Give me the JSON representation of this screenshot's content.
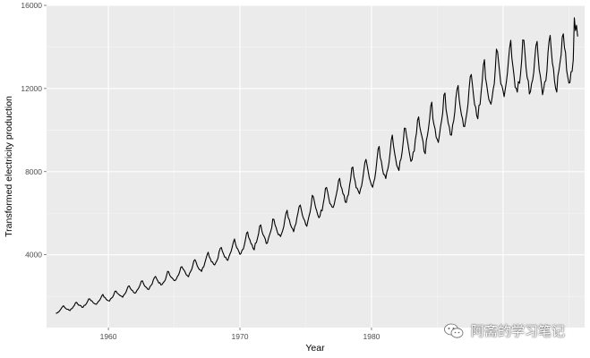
{
  "chart_data": {
    "type": "line",
    "xlabel": "Year",
    "ylabel": "Transformed electricity production",
    "xlim": [
      1955.3,
      1996.2
    ],
    "ylim": [
      500,
      16000
    ],
    "x_ticks": [
      1960,
      1970,
      1980,
      1990
    ],
    "x_tick_labels": [
      "1960",
      "1970",
      "1980",
      ""
    ],
    "y_ticks": [
      4000,
      8000,
      12000,
      16000
    ],
    "y_tick_labels": [
      "4000",
      "8000",
      "12000",
      "16000"
    ],
    "grid": true,
    "frequency": "monthly",
    "series": [
      {
        "x_start": 1956.0,
        "x_end": 1995.667,
        "trend_anchors": [
          [
            1956.0,
            1300
          ],
          [
            1960.0,
            1950
          ],
          [
            1965.0,
            3000
          ],
          [
            1970.0,
            4400
          ],
          [
            1975.0,
            6000
          ],
          [
            1980.0,
            8000
          ],
          [
            1985.0,
            10400
          ],
          [
            1988.0,
            11700
          ],
          [
            1990.0,
            12900
          ],
          [
            1993.0,
            13000
          ],
          [
            1995.667,
            13700
          ]
        ],
        "seasonal_amplitude_fraction": 0.1,
        "final_value": 14500,
        "peak_value": 15400
      }
    ],
    "color": "#000000"
  },
  "watermark": {
    "text": "阿斋的学习笔记",
    "icon": "wechat-icon"
  }
}
